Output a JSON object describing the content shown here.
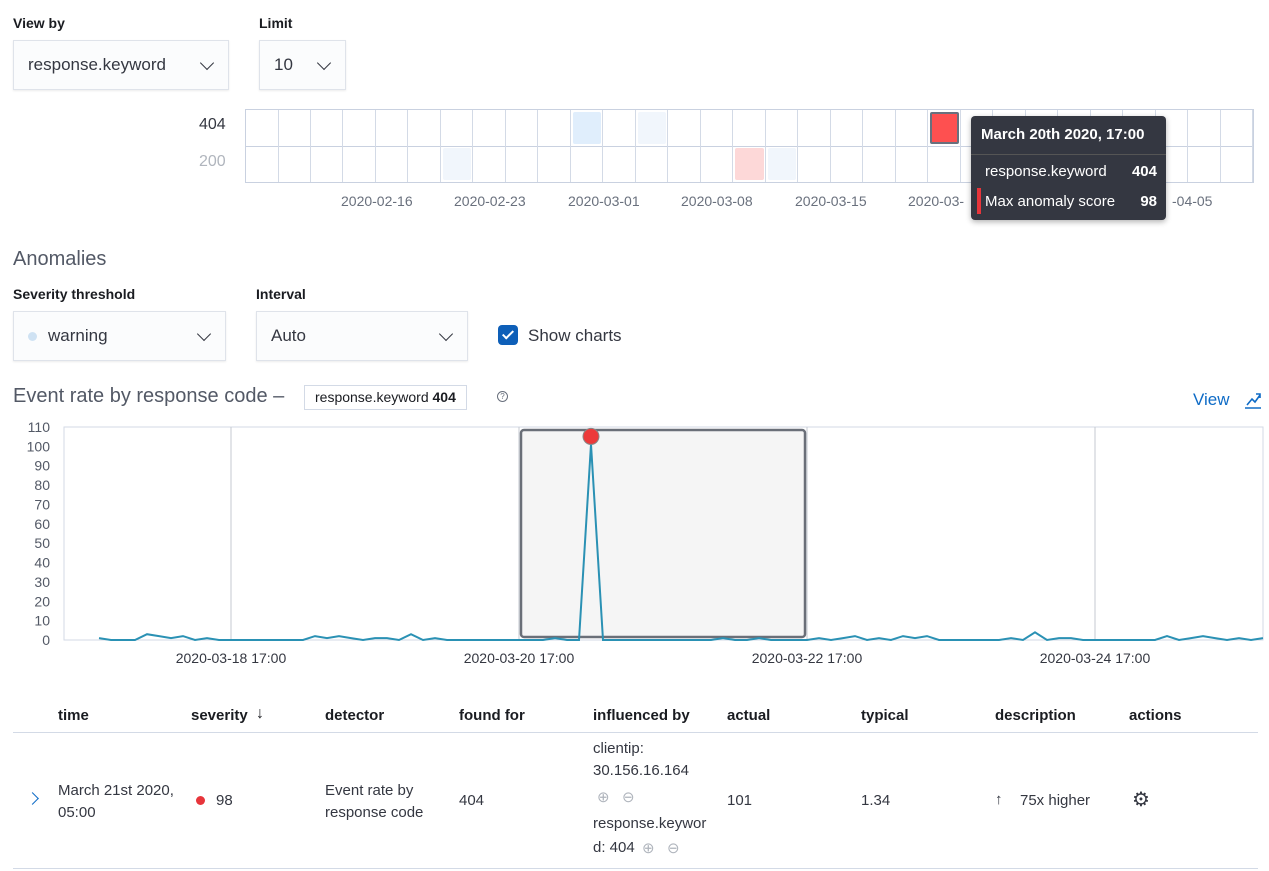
{
  "controls": {
    "view_by_label": "View by",
    "view_by_value": "response.keyword",
    "limit_label": "Limit",
    "limit_value": "10"
  },
  "swimlane": {
    "lanes": [
      "404",
      "200"
    ],
    "date_labels": [
      "2020-02-16",
      "2020-02-23",
      "2020-03-01",
      "2020-03-08",
      "2020-03-15",
      "2020-03-",
      "-04-05"
    ],
    "cells": [
      {
        "lane": 0,
        "col": 10,
        "color": "#e0eefc"
      },
      {
        "lane": 0,
        "col": 12,
        "color": "#f1f6fc"
      },
      {
        "lane": 0,
        "col": 21,
        "color": "#fe5050",
        "selected": true
      },
      {
        "lane": 1,
        "col": 6,
        "color": "#f1f6fc"
      },
      {
        "lane": 1,
        "col": 15,
        "color": "#fdd8d8"
      },
      {
        "lane": 1,
        "col": 16,
        "color": "#f1f6fc"
      }
    ],
    "tooltip": {
      "title": "March 20th 2020, 17:00",
      "field": "response.keyword",
      "field_value": "404",
      "score_label": "Max anomaly score",
      "score_value": "98",
      "score_color": "#e7353b"
    }
  },
  "anomalies": {
    "title": "Anomalies",
    "severity_label": "Severity threshold",
    "severity_value": "warning",
    "interval_label": "Interval",
    "interval_value": "Auto",
    "show_charts_label": "Show charts",
    "show_charts": true
  },
  "chart_header": {
    "title": "Event rate by response code –",
    "badge_field": "response.keyword",
    "badge_value": "404",
    "view_label": "View"
  },
  "chart_data": {
    "type": "line",
    "ylim": [
      0,
      110
    ],
    "y_ticks": [
      0,
      10,
      20,
      30,
      40,
      50,
      60,
      70,
      80,
      90,
      100,
      110
    ],
    "x_tick_labels": [
      "2020-03-18 17:00",
      "2020-03-20 17:00",
      "2020-03-22 17:00",
      "2020-03-24 17:00"
    ],
    "x_start": "2020-03-17 19:00",
    "interval_hours": 2,
    "values": [
      1,
      0,
      0,
      0,
      3,
      2,
      1,
      2,
      0,
      1,
      0,
      0,
      0,
      0,
      0,
      0,
      0,
      0,
      2,
      1,
      2,
      1,
      0,
      1,
      1,
      0,
      3,
      0,
      1,
      0,
      0,
      0,
      0,
      0,
      0,
      0,
      0,
      0,
      1,
      0,
      0,
      101,
      0,
      0,
      0,
      0,
      0,
      0,
      0,
      0,
      0,
      0,
      1,
      0,
      0,
      1,
      0,
      0,
      0,
      0,
      1,
      0,
      1,
      2,
      0,
      1,
      0,
      2,
      1,
      2,
      0,
      0,
      0,
      0,
      0,
      0,
      1,
      0,
      4,
      0,
      1,
      1,
      0,
      0,
      0,
      0,
      0,
      0,
      0,
      2,
      0,
      1,
      2,
      1,
      0,
      1,
      0,
      1
    ],
    "anomaly": {
      "time": "2020-03-21 05:00",
      "value": 101,
      "color": "#ec3a3a"
    },
    "line_color": "#2a91b4"
  },
  "table": {
    "headers": [
      "time",
      "severity",
      "detector",
      "found for",
      "influenced by",
      "actual",
      "typical",
      "description",
      "actions"
    ],
    "row": {
      "time": "March 21st 2020, 05:00",
      "severity": "98",
      "detector": "Event rate by response code",
      "found_for": "404",
      "influencer1_name": "clientip:",
      "influencer1_value": "30.156.16.164",
      "influencer2_name": "response.keywor",
      "influencer2_value": "d: 404",
      "actual": "101",
      "typical": "1.34",
      "description": "75x higher"
    }
  }
}
